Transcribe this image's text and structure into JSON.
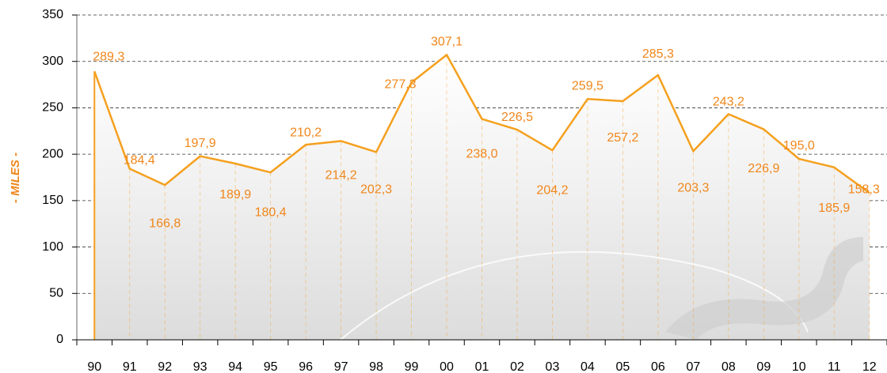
{
  "chart_data": {
    "type": "line",
    "y_axis_label": "- MILES -",
    "categories": [
      "90",
      "91",
      "92",
      "93",
      "94",
      "95",
      "96",
      "97",
      "98",
      "99",
      "00",
      "01",
      "02",
      "03",
      "04",
      "05",
      "06",
      "07",
      "08",
      "09",
      "10",
      "11",
      "12"
    ],
    "values": [
      289.3,
      184.4,
      166.8,
      197.9,
      189.9,
      180.4,
      210.2,
      214.2,
      202.3,
      277.3,
      307.1,
      238.0,
      226.5,
      204.2,
      259.5,
      257.2,
      285.3,
      203.3,
      243.2,
      226.9,
      195.0,
      185.9,
      158.3
    ],
    "value_labels": [
      "289,3",
      "184,4",
      "166,8",
      "197,9",
      "189,9",
      "180,4",
      "210,2",
      "214,2",
      "202,3",
      "277,3",
      "307,1",
      "238,0",
      "226,5",
      "204,2",
      "259,5",
      "257,2",
      "285,3",
      "203,3",
      "243,2",
      "226,9",
      "195,0",
      "185,9",
      "158,3"
    ],
    "color": "#f5a01e",
    "label_color": "#f0861a",
    "ylim": [
      0,
      350
    ],
    "yticks": [
      0,
      50,
      100,
      150,
      200,
      250,
      300,
      350
    ],
    "grid": true
  }
}
